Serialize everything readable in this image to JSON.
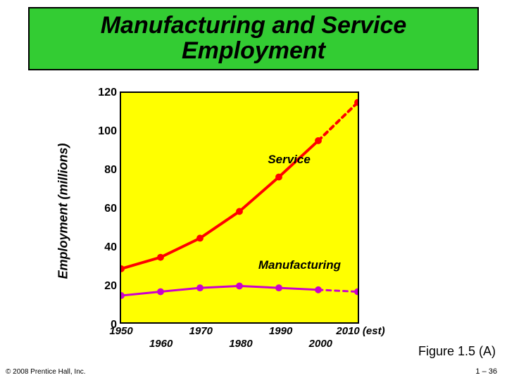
{
  "title": "Manufacturing and Service\nEmployment",
  "title_fontsize": 34,
  "title_bg": "#33cc33",
  "y_axis_label": "Employment (millions)",
  "y_axis_fontsize": 18,
  "y_ticks": [
    0,
    20,
    40,
    60,
    80,
    100,
    120
  ],
  "y_tick_fontsize": 16,
  "x_ticks_row1": [
    "1950",
    "1970",
    "1990",
    "2010 (est)"
  ],
  "x_ticks_row2": [
    "1960",
    "1980",
    "2000"
  ],
  "x_tick_fontsize": 15,
  "ylim": [
    0,
    120
  ],
  "xlim": [
    1950,
    2010
  ],
  "plot_bg": "#ffff00",
  "series": {
    "service": {
      "label": "Service",
      "label_pos_pct": {
        "x": 62,
        "y": 26
      },
      "color": "#ff0000",
      "line_width": 4,
      "marker_color": "#ff0000",
      "marker_radius": 5,
      "dashed_from_index": 6,
      "points": [
        {
          "x": 1950,
          "y": 28
        },
        {
          "x": 1960,
          "y": 34
        },
        {
          "x": 1970,
          "y": 44
        },
        {
          "x": 1980,
          "y": 58
        },
        {
          "x": 1990,
          "y": 76
        },
        {
          "x": 2000,
          "y": 95
        },
        {
          "x": 2010,
          "y": 115
        }
      ]
    },
    "manufacturing": {
      "label": "Manufacturing",
      "label_pos_pct": {
        "x": 58,
        "y": 72
      },
      "color": "#cc00cc",
      "line_width": 3,
      "marker_color": "#cc00cc",
      "marker_radius": 5,
      "dashed_from_index": 6,
      "points": [
        {
          "x": 1950,
          "y": 14
        },
        {
          "x": 1960,
          "y": 16
        },
        {
          "x": 1970,
          "y": 18
        },
        {
          "x": 1980,
          "y": 19
        },
        {
          "x": 1990,
          "y": 18
        },
        {
          "x": 2000,
          "y": 17
        },
        {
          "x": 2010,
          "y": 16
        }
      ]
    }
  },
  "copyright": "© 2008 Prentice Hall, Inc.",
  "figure_label": "Figure 1.5 (A)",
  "page_number": "1 – 36",
  "label_fontsize": 17
}
